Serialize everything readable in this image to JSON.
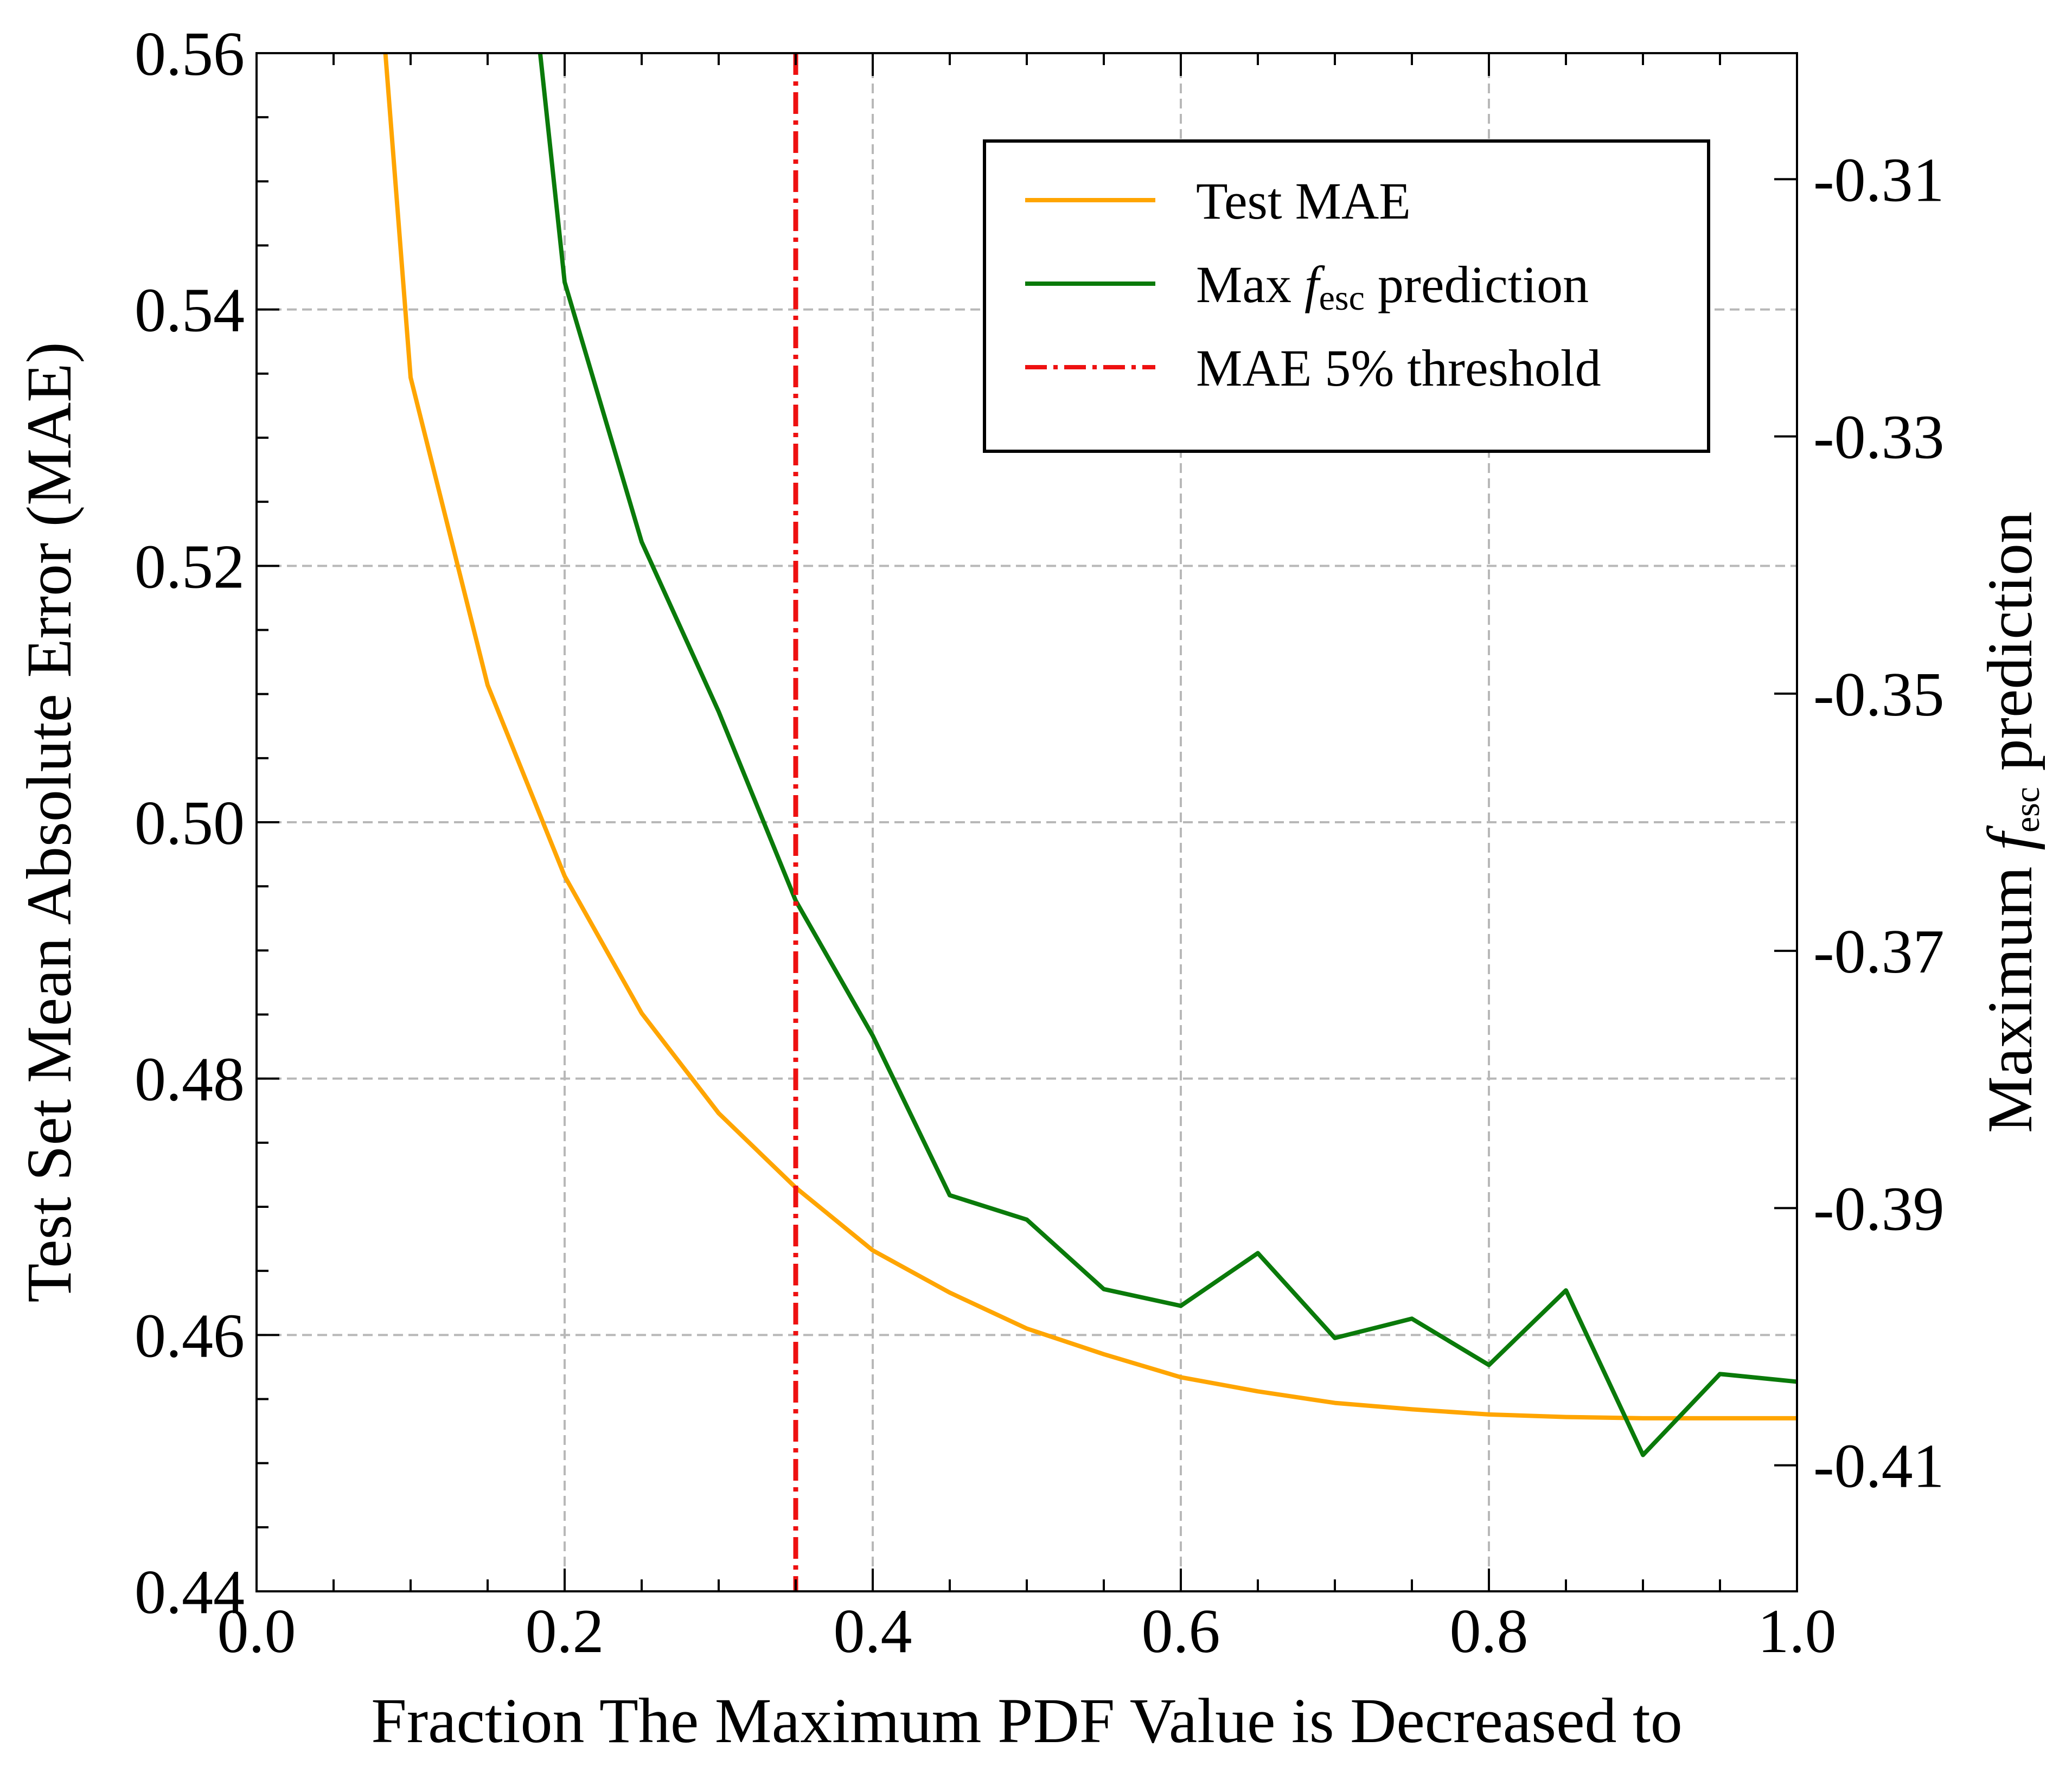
{
  "chart_data": {
    "type": "line",
    "xlabel": "Fraction The Maximum PDF Value is Decreased to",
    "ylabel": "Test Set Mean Absolute Error (MAE)",
    "y2label": {
      "before": "Maximum ",
      "italic": "f",
      "sub": "esc",
      "after": " prediction"
    },
    "xlim": [
      0.0,
      1.0
    ],
    "ylim": [
      0.44,
      0.56
    ],
    "y2lim": [
      -0.4198,
      -0.3002
    ],
    "xticks": [
      "0.0",
      "0.2",
      "0.4",
      "0.6",
      "0.8",
      "1.0"
    ],
    "yticks": [
      "0.44",
      "0.46",
      "0.48",
      "0.50",
      "0.52",
      "0.54",
      "0.56"
    ],
    "y2ticks": [
      "-0.41",
      "-0.39",
      "-0.37",
      "-0.35",
      "-0.33",
      "-0.31"
    ],
    "grid": true,
    "legend_position": "top-right",
    "series": [
      {
        "name": "Test MAE",
        "axis": "left",
        "color": "#FFA500",
        "x": [
          0.05,
          0.1,
          0.15,
          0.2,
          0.25,
          0.3,
          0.35,
          0.4,
          0.45,
          0.5,
          0.55,
          0.6,
          0.65,
          0.7,
          0.75,
          0.8,
          0.85,
          0.9,
          0.95,
          1.0
        ],
        "y": [
          0.612,
          0.5347,
          0.5107,
          0.4958,
          0.4851,
          0.4773,
          0.4715,
          0.4666,
          0.4633,
          0.4605,
          0.4585,
          0.4567,
          0.4556,
          0.4547,
          0.4542,
          0.4538,
          0.4536,
          0.4535,
          0.4535,
          0.4535
        ]
      },
      {
        "name": {
          "before": "Max ",
          "italic": "f",
          "sub": "esc",
          "after": " prediction"
        },
        "axis": "right",
        "color": "#0A7A0A",
        "x": [
          0.15,
          0.2,
          0.25,
          0.3,
          0.35,
          0.4,
          0.45,
          0.5,
          0.55,
          0.6,
          0.65,
          0.7,
          0.75,
          0.8,
          0.85,
          0.9,
          0.95,
          1.0
        ],
        "y": [
          -0.262,
          -0.318,
          -0.3382,
          -0.3514,
          -0.3661,
          -0.3766,
          -0.389,
          -0.3909,
          -0.3963,
          -0.3976,
          -0.3935,
          -0.4001,
          -0.3986,
          -0.4022,
          -0.3964,
          -0.4092,
          -0.4029,
          -0.4035
        ]
      }
    ],
    "annotations": [
      {
        "type": "vline",
        "x": 0.35,
        "name": "MAE 5% threshold",
        "color": "#EE1111",
        "style": "dash-dot"
      }
    ],
    "legend": [
      {
        "name": "Test MAE",
        "color": "#FFA500",
        "style": "solid"
      },
      {
        "name": {
          "before": "Max ",
          "italic": "f",
          "sub": "esc",
          "after": " prediction"
        },
        "color": "#0A7A0A",
        "style": "solid"
      },
      {
        "name": "MAE 5% threshold",
        "color": "#EE1111",
        "style": "dash-dot"
      }
    ]
  }
}
